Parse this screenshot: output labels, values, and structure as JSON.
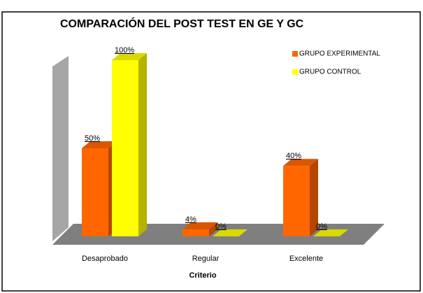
{
  "chart_data": {
    "type": "bar3d",
    "title": "COMPARACIÓN DEL POST TEST EN GE Y GC",
    "xlabel": "Criterio",
    "categories": [
      "Desaprobado",
      "Regular",
      "Excelente"
    ],
    "ylim": [
      0,
      100
    ],
    "series": [
      {
        "name": "GRUPO EXPERIMENTAL",
        "color": "#ff6600",
        "values": [
          50,
          4,
          40
        ],
        "value_labels": [
          "50%",
          "4%",
          "40%"
        ]
      },
      {
        "name": "GRUPO CONTROL",
        "color": "#ffff00",
        "values": [
          100,
          0,
          0
        ],
        "value_labels": [
          "100%",
          "0%",
          "0%"
        ]
      }
    ]
  }
}
